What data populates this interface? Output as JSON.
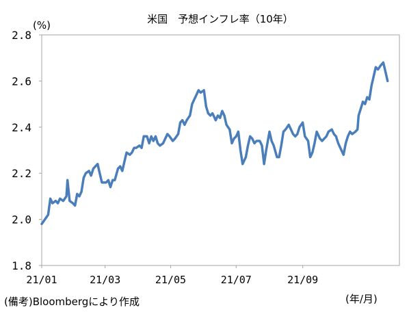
{
  "chart_data": {
    "type": "line",
    "title": "米国　予想インフレ率（10年）",
    "ylabel": "(%)",
    "xlabel": "(年/月)",
    "ylim": [
      1.8,
      2.8
    ],
    "yticks": [
      "1.8",
      "2.0",
      "2.2",
      "2.4",
      "2.6",
      "2.8"
    ],
    "x_range": [
      "2021-01-01",
      "2021-11-30"
    ],
    "xticks": [
      {
        "label": "21/01",
        "x": "2021-01-01"
      },
      {
        "label": "21/03",
        "x": "2021-03-01"
      },
      {
        "label": "21/05",
        "x": "2021-05-01"
      },
      {
        "label": "21/07",
        "x": "2021-07-01"
      },
      {
        "label": "21/09",
        "x": "2021-09-01"
      }
    ],
    "grid": false,
    "line_color": "#4a7ebb",
    "series": [
      {
        "name": "",
        "points": [
          [
            "2021-01-01",
            1.98
          ],
          [
            "2021-01-04",
            2.0
          ],
          [
            "2021-01-07",
            2.02
          ],
          [
            "2021-01-09",
            2.09
          ],
          [
            "2021-01-11",
            2.07
          ],
          [
            "2021-01-14",
            2.08
          ],
          [
            "2021-01-16",
            2.07
          ],
          [
            "2021-01-18",
            2.09
          ],
          [
            "2021-01-21",
            2.08
          ],
          [
            "2021-01-24",
            2.1
          ],
          [
            "2021-01-25",
            2.17
          ],
          [
            "2021-01-27",
            2.08
          ],
          [
            "2021-01-30",
            2.07
          ],
          [
            "2021-02-01",
            2.06
          ],
          [
            "2021-02-03",
            2.11
          ],
          [
            "2021-02-05",
            2.1
          ],
          [
            "2021-02-07",
            2.12
          ],
          [
            "2021-02-09",
            2.18
          ],
          [
            "2021-02-11",
            2.2
          ],
          [
            "2021-02-14",
            2.21
          ],
          [
            "2021-02-16",
            2.19
          ],
          [
            "2021-02-18",
            2.22
          ],
          [
            "2021-02-20",
            2.23
          ],
          [
            "2021-02-22",
            2.24
          ],
          [
            "2021-02-24",
            2.2
          ],
          [
            "2021-02-26",
            2.16
          ],
          [
            "2021-03-02",
            2.16
          ],
          [
            "2021-03-04",
            2.17
          ],
          [
            "2021-03-06",
            2.14
          ],
          [
            "2021-03-08",
            2.17
          ],
          [
            "2021-03-10",
            2.17
          ],
          [
            "2021-03-13",
            2.22
          ],
          [
            "2021-03-15",
            2.23
          ],
          [
            "2021-03-17",
            2.21
          ],
          [
            "2021-03-19",
            2.25
          ],
          [
            "2021-03-21",
            2.29
          ],
          [
            "2021-03-24",
            2.28
          ],
          [
            "2021-03-26",
            2.29
          ],
          [
            "2021-03-28",
            2.31
          ],
          [
            "2021-03-30",
            2.31
          ],
          [
            "2021-04-02",
            2.32
          ],
          [
            "2021-04-04",
            2.31
          ],
          [
            "2021-04-06",
            2.36
          ],
          [
            "2021-04-09",
            2.36
          ],
          [
            "2021-04-11",
            2.33
          ],
          [
            "2021-04-13",
            2.36
          ],
          [
            "2021-04-15",
            2.34
          ],
          [
            "2021-04-17",
            2.36
          ],
          [
            "2021-04-19",
            2.33
          ],
          [
            "2021-04-21",
            2.32
          ],
          [
            "2021-04-24",
            2.33
          ],
          [
            "2021-04-26",
            2.35
          ],
          [
            "2021-04-28",
            2.37
          ],
          [
            "2021-04-30",
            2.36
          ],
          [
            "2021-05-03",
            2.34
          ],
          [
            "2021-05-05",
            2.35
          ],
          [
            "2021-05-08",
            2.37
          ],
          [
            "2021-05-10",
            2.42
          ],
          [
            "2021-05-12",
            2.43
          ],
          [
            "2021-05-14",
            2.41
          ],
          [
            "2021-05-16",
            2.43
          ],
          [
            "2021-05-19",
            2.45
          ],
          [
            "2021-05-21",
            2.5
          ],
          [
            "2021-05-23",
            2.52
          ],
          [
            "2021-05-25",
            2.54
          ],
          [
            "2021-05-27",
            2.56
          ],
          [
            "2021-05-29",
            2.55
          ],
          [
            "2021-06-01",
            2.56
          ],
          [
            "2021-06-03",
            2.49
          ],
          [
            "2021-06-05",
            2.46
          ],
          [
            "2021-06-07",
            2.45
          ],
          [
            "2021-06-09",
            2.46
          ],
          [
            "2021-06-12",
            2.43
          ],
          [
            "2021-06-14",
            2.45
          ],
          [
            "2021-06-16",
            2.44
          ],
          [
            "2021-06-18",
            2.47
          ],
          [
            "2021-06-20",
            2.45
          ],
          [
            "2021-06-22",
            2.41
          ],
          [
            "2021-06-25",
            2.39
          ],
          [
            "2021-06-27",
            2.33
          ],
          [
            "2021-06-29",
            2.35
          ],
          [
            "2021-07-01",
            2.36
          ],
          [
            "2021-07-03",
            2.38
          ],
          [
            "2021-07-05",
            2.3
          ],
          [
            "2021-07-07",
            2.24
          ],
          [
            "2021-07-10",
            2.27
          ],
          [
            "2021-07-12",
            2.32
          ],
          [
            "2021-07-14",
            2.36
          ],
          [
            "2021-07-16",
            2.35
          ],
          [
            "2021-07-18",
            2.33
          ],
          [
            "2021-07-20",
            2.34
          ],
          [
            "2021-07-23",
            2.34
          ],
          [
            "2021-07-25",
            2.32
          ],
          [
            "2021-07-27",
            2.24
          ],
          [
            "2021-07-29",
            2.3
          ],
          [
            "2021-08-01",
            2.38
          ],
          [
            "2021-08-03",
            2.34
          ],
          [
            "2021-08-05",
            2.32
          ],
          [
            "2021-08-08",
            2.27
          ],
          [
            "2021-08-10",
            2.27
          ],
          [
            "2021-08-12",
            2.32
          ],
          [
            "2021-08-14",
            2.38
          ],
          [
            "2021-08-16",
            2.39
          ],
          [
            "2021-08-19",
            2.41
          ],
          [
            "2021-08-21",
            2.39
          ],
          [
            "2021-08-23",
            2.37
          ],
          [
            "2021-08-25",
            2.36
          ],
          [
            "2021-08-27",
            2.37
          ],
          [
            "2021-08-29",
            2.4
          ],
          [
            "2021-09-01",
            2.42
          ],
          [
            "2021-09-03",
            2.36
          ],
          [
            "2021-09-06",
            2.34
          ],
          [
            "2021-09-08",
            2.27
          ],
          [
            "2021-09-10",
            2.29
          ],
          [
            "2021-09-12",
            2.33
          ],
          [
            "2021-09-14",
            2.38
          ],
          [
            "2021-09-17",
            2.35
          ],
          [
            "2021-09-19",
            2.34
          ],
          [
            "2021-09-21",
            2.35
          ],
          [
            "2021-09-23",
            2.36
          ],
          [
            "2021-09-25",
            2.38
          ],
          [
            "2021-09-28",
            2.39
          ],
          [
            "2021-09-30",
            2.37
          ],
          [
            "2021-10-02",
            2.36
          ],
          [
            "2021-10-04",
            2.33
          ],
          [
            "2021-10-06",
            2.31
          ],
          [
            "2021-10-09",
            2.28
          ],
          [
            "2021-10-11",
            2.33
          ],
          [
            "2021-10-13",
            2.36
          ],
          [
            "2021-10-15",
            2.38
          ],
          [
            "2021-10-17",
            2.37
          ],
          [
            "2021-10-20",
            2.38
          ],
          [
            "2021-10-22",
            2.39
          ],
          [
            "2021-10-23",
            2.45
          ],
          [
            "2021-10-25",
            2.48
          ],
          [
            "2021-10-27",
            2.51
          ],
          [
            "2021-10-29",
            2.5
          ],
          [
            "2021-10-31",
            2.53
          ],
          [
            "2021-11-02",
            2.52
          ],
          [
            "2021-11-04",
            2.58
          ],
          [
            "2021-11-06",
            2.62
          ],
          [
            "2021-11-08",
            2.66
          ],
          [
            "2021-11-10",
            2.65
          ],
          [
            "2021-11-13",
            2.67
          ],
          [
            "2021-11-15",
            2.68
          ],
          [
            "2021-11-17",
            2.64
          ],
          [
            "2021-11-19",
            2.6
          ]
        ]
      }
    ]
  },
  "footnote": {
    "source": "(備考)Bloombergにより作成"
  }
}
